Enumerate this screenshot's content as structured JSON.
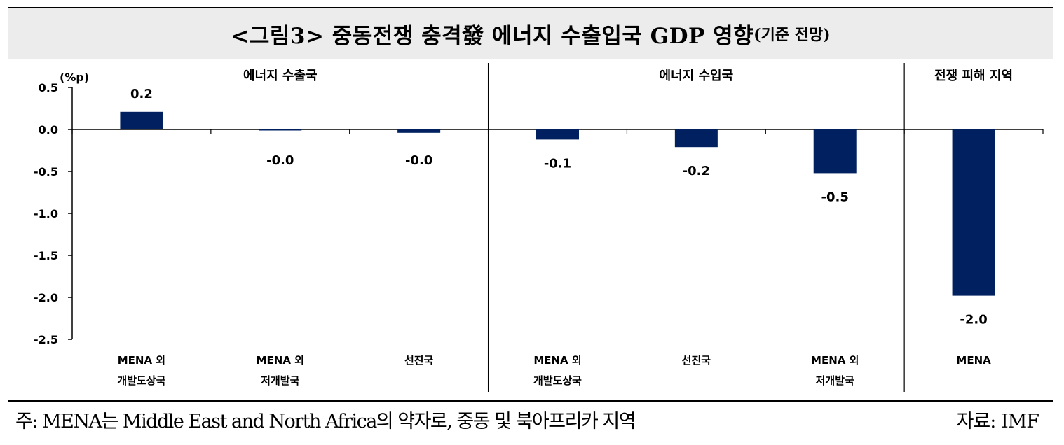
{
  "title": {
    "main": "<그림3> 중동전쟁 충격發 에너지 수출입국 GDP 영향",
    "sub": "(기준 전망)"
  },
  "colors": {
    "bar": "#002060",
    "axis": "#000000",
    "title_bg": "#ececec"
  },
  "chart_data": {
    "type": "bar",
    "title": "<그림3> 중동전쟁 충격發 에너지 수출입국 GDP 영향(기준 전망)",
    "ylabel": "(%p)",
    "ylim": [
      -2.5,
      0.5
    ],
    "yticks": [
      "0.5",
      "0.0",
      "-0.5",
      "-1.0",
      "-1.5",
      "-2.0",
      "-2.5"
    ],
    "ytick_values": [
      0.5,
      0.0,
      -0.5,
      -1.0,
      -1.5,
      -2.0,
      -2.5
    ],
    "groups": [
      {
        "name": "에너지 수출국",
        "count": 3
      },
      {
        "name": "에너지 수입국",
        "count": 3
      },
      {
        "name": "전쟁 피해 지역",
        "count": 1
      }
    ],
    "categories": [
      [
        "MENA 외",
        "개발도상국"
      ],
      [
        "MENA 외",
        "저개발국"
      ],
      [
        "선진국"
      ],
      [
        "MENA 외",
        "개발도상국"
      ],
      [
        "선진국"
      ],
      [
        "MENA 외",
        "저개발국"
      ],
      [
        "MENA"
      ]
    ],
    "values": [
      0.21,
      -0.005,
      -0.04,
      -0.12,
      -0.21,
      -0.52,
      -1.98
    ],
    "data_labels": [
      "0.2",
      "-0.0",
      "-0.0",
      "-0.1",
      "-0.2",
      "-0.5",
      "-2.0"
    ]
  },
  "footer": {
    "note": "주: MENA는 Middle East and North Africa의 약자로, 중동 및 북아프리카 지역",
    "source": "자료: IMF"
  }
}
